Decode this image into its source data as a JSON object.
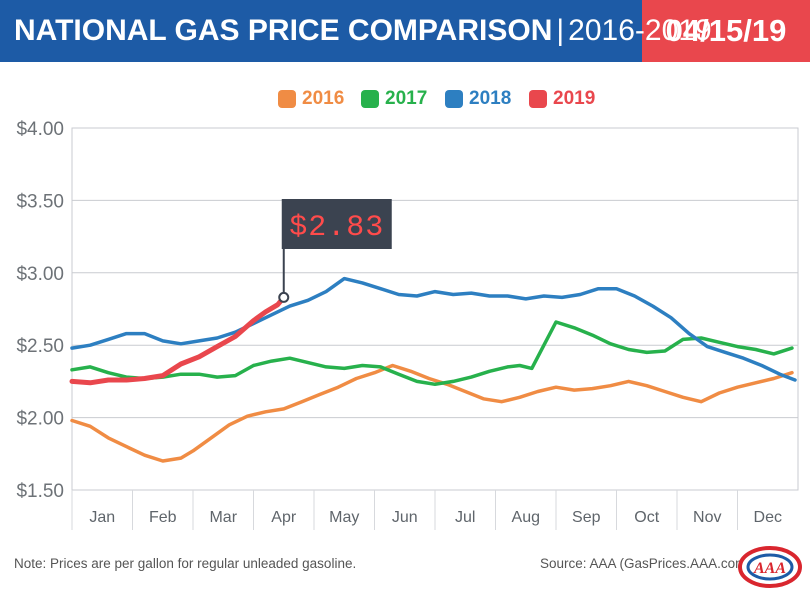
{
  "header": {
    "title_main": "NATIONAL GAS PRICE COMPARISON",
    "title_sep": "|",
    "title_years": "2016-2019",
    "date": "04/15/19"
  },
  "legend": [
    {
      "label": "2016",
      "color": "#f08c44"
    },
    {
      "label": "2017",
      "color": "#27b14c"
    },
    {
      "label": "2018",
      "color": "#2d7fc1"
    },
    {
      "label": "2019",
      "color": "#e9474d"
    }
  ],
  "callout": {
    "label": "$2.83",
    "year": "2019"
  },
  "footer": {
    "note": "Note: Prices are per gallon for regular unleaded gasoline.",
    "source": "Source: AAA (GasPrices.AAA.com)",
    "logo_text": "AAA"
  },
  "chart_data": {
    "type": "line",
    "title": "NATIONAL GAS PRICE COMPARISON | 2016-2019",
    "ylabel": "",
    "xlabel": "",
    "ylim": [
      1.5,
      4.0
    ],
    "yticks": [
      1.5,
      2.0,
      2.5,
      3.0,
      3.5,
      4.0
    ],
    "ytick_labels": [
      "$1.50",
      "$2.00",
      "$2.50",
      "$3.00",
      "$3.50",
      "$4.00"
    ],
    "categories": [
      "Jan",
      "Feb",
      "Mar",
      "Apr",
      "May",
      "Jun",
      "Jul",
      "Aug",
      "Sep",
      "Oct",
      "Nov",
      "Dec"
    ],
    "grid": "horizontal",
    "legend_position": "top-center",
    "x_unit": "month (1 = start of Jan, 13 = end of Dec)",
    "series": [
      {
        "name": "2016",
        "color": "#f08c44",
        "x": [
          1.0,
          1.3,
          1.6,
          1.9,
          2.2,
          2.5,
          2.8,
          3.0,
          3.3,
          3.6,
          3.9,
          4.2,
          4.5,
          4.8,
          5.1,
          5.4,
          5.7,
          6.0,
          6.3,
          6.6,
          6.9,
          7.2,
          7.5,
          7.8,
          8.1,
          8.4,
          8.7,
          9.0,
          9.3,
          9.6,
          9.9,
          10.2,
          10.5,
          10.8,
          11.1,
          11.4,
          11.7,
          12.0,
          12.3,
          12.6,
          12.9
        ],
        "values": [
          1.98,
          1.94,
          1.86,
          1.8,
          1.74,
          1.7,
          1.72,
          1.77,
          1.86,
          1.95,
          2.01,
          2.04,
          2.06,
          2.11,
          2.16,
          2.21,
          2.27,
          2.31,
          2.36,
          2.32,
          2.27,
          2.23,
          2.18,
          2.13,
          2.11,
          2.14,
          2.18,
          2.21,
          2.19,
          2.2,
          2.22,
          2.25,
          2.22,
          2.18,
          2.14,
          2.11,
          2.17,
          2.21,
          2.24,
          2.27,
          2.31
        ]
      },
      {
        "name": "2017",
        "color": "#27b14c",
        "x": [
          1.0,
          1.3,
          1.6,
          1.9,
          2.2,
          2.5,
          2.8,
          3.1,
          3.4,
          3.7,
          4.0,
          4.3,
          4.6,
          4.9,
          5.2,
          5.5,
          5.8,
          6.1,
          6.4,
          6.7,
          7.0,
          7.3,
          7.6,
          7.9,
          8.2,
          8.4,
          8.6,
          8.8,
          9.0,
          9.3,
          9.6,
          9.9,
          10.2,
          10.5,
          10.8,
          11.1,
          11.4,
          11.7,
          12.0,
          12.3,
          12.6,
          12.9
        ],
        "values": [
          2.33,
          2.35,
          2.31,
          2.28,
          2.27,
          2.28,
          2.3,
          2.3,
          2.28,
          2.29,
          2.36,
          2.39,
          2.41,
          2.38,
          2.35,
          2.34,
          2.36,
          2.35,
          2.3,
          2.25,
          2.23,
          2.25,
          2.28,
          2.32,
          2.35,
          2.36,
          2.34,
          2.5,
          2.66,
          2.62,
          2.57,
          2.51,
          2.47,
          2.45,
          2.46,
          2.54,
          2.55,
          2.52,
          2.49,
          2.47,
          2.44,
          2.48
        ]
      },
      {
        "name": "2018",
        "color": "#2d7fc1",
        "x": [
          1.0,
          1.3,
          1.6,
          1.9,
          2.2,
          2.5,
          2.8,
          3.1,
          3.4,
          3.7,
          4.0,
          4.3,
          4.6,
          4.9,
          5.2,
          5.5,
          5.8,
          6.1,
          6.4,
          6.7,
          7.0,
          7.3,
          7.6,
          7.9,
          8.2,
          8.5,
          8.8,
          9.1,
          9.4,
          9.7,
          10.0,
          10.3,
          10.6,
          10.9,
          11.2,
          11.5,
          11.8,
          12.1,
          12.4,
          12.7,
          12.95
        ],
        "values": [
          2.48,
          2.5,
          2.54,
          2.58,
          2.58,
          2.53,
          2.51,
          2.53,
          2.55,
          2.59,
          2.65,
          2.71,
          2.77,
          2.81,
          2.87,
          2.96,
          2.93,
          2.89,
          2.85,
          2.84,
          2.87,
          2.85,
          2.86,
          2.84,
          2.84,
          2.82,
          2.84,
          2.83,
          2.85,
          2.89,
          2.89,
          2.84,
          2.77,
          2.69,
          2.58,
          2.49,
          2.45,
          2.41,
          2.36,
          2.3,
          2.26
        ]
      },
      {
        "name": "2019",
        "color": "#e9474d",
        "x": [
          1.0,
          1.3,
          1.6,
          1.9,
          2.2,
          2.5,
          2.8,
          3.1,
          3.4,
          3.7,
          4.0,
          4.2,
          4.4,
          4.5
        ],
        "values": [
          2.25,
          2.24,
          2.26,
          2.26,
          2.27,
          2.29,
          2.37,
          2.42,
          2.49,
          2.56,
          2.67,
          2.73,
          2.78,
          2.83
        ]
      }
    ]
  }
}
